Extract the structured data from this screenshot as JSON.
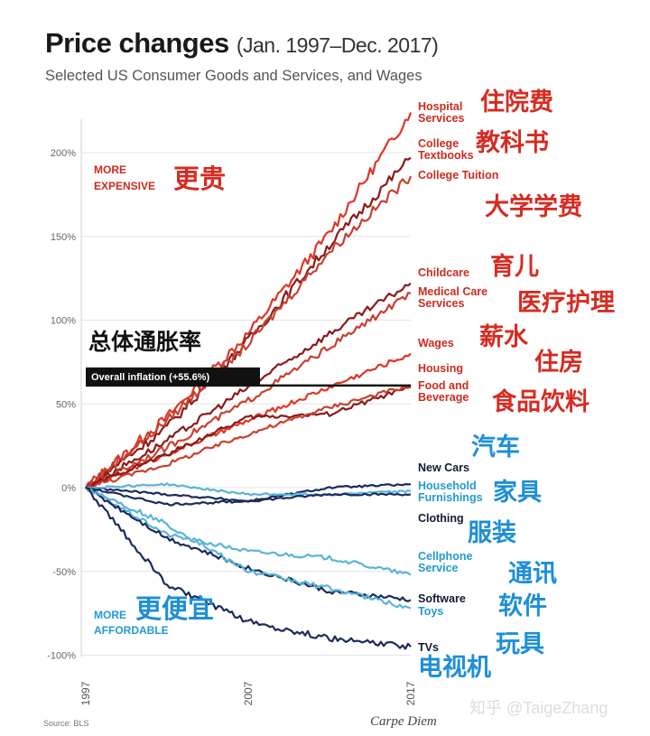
{
  "header": {
    "title": "Price changes",
    "title_range": "(Jan. 1997–Dec. 2017)",
    "subtitle": "Selected US Consumer Goods and Services, and Wages"
  },
  "footer": {
    "source": "Source: BLS",
    "credit": "Carpe Diem",
    "watermark": "知乎 @TaigeZhang"
  },
  "colors": {
    "expensive": "#cc2a1f",
    "affordable": "#1f9bd1",
    "dark_red": "#8b1a1a",
    "mid_red": "#c8402f",
    "bright_red": "#e03526",
    "navy": "#1a2b5e",
    "light_blue": "#5ab4d8",
    "cn_red": "#d62b22",
    "cn_blue": "#1e8fd6",
    "grid": "#e4e4e4"
  },
  "chart_data": {
    "type": "line",
    "title": "Price changes",
    "subtitle": "Selected US Consumer Goods and Services, and Wages",
    "xlim": [
      1997,
      2017
    ],
    "ylim": [
      -100,
      220
    ],
    "x_ticks": [
      "1997",
      "2007",
      "2017"
    ],
    "y_ticks": [
      "200%",
      "150%",
      "100%",
      "50%",
      "0%",
      "-50%",
      "-100%"
    ],
    "grid": true,
    "region_labels": {
      "expensive": "MORE EXPENSIVE",
      "affordable": "MORE AFFORDABLE",
      "expensive_cn": "更贵",
      "affordable_cn": "更便宜"
    },
    "inflation": {
      "label": "Overall inflation (+55.6%)",
      "label_cn": "总体通胀率",
      "value": 55.6
    },
    "x": [
      1997,
      2002,
      2007,
      2012,
      2017
    ],
    "series": [
      {
        "name": "Hospital Services",
        "name_cn": "住院费",
        "color": "#e03526",
        "values": [
          0,
          42,
          92,
          152,
          224
        ]
      },
      {
        "name": "College Textbooks",
        "name_cn": "教科书",
        "color": "#8b1a1a",
        "values": [
          0,
          36,
          88,
          145,
          197
        ]
      },
      {
        "name": "College Tuition",
        "name_cn": "大学学费",
        "color": "#c8402f",
        "values": [
          0,
          40,
          86,
          141,
          186
        ]
      },
      {
        "name": "Childcare",
        "name_cn": "育儿",
        "color": "#8b1a1a",
        "values": [
          0,
          28,
          60,
          92,
          122
        ]
      },
      {
        "name": "Medical Care Services",
        "name_cn": "医疗护理",
        "color": "#c8402f",
        "values": [
          0,
          24,
          52,
          84,
          116
        ]
      },
      {
        "name": "Wages",
        "name_cn": "薪水",
        "color": "#e03526",
        "values": [
          0,
          20,
          40,
          60,
          80
        ]
      },
      {
        "name": "Housing",
        "name_cn": "住房",
        "color": "#8b1a1a",
        "values": [
          0,
          20,
          42,
          44,
          60
        ]
      },
      {
        "name": "Food and Beverage",
        "name_cn": "食品饮料",
        "color": "#c8402f",
        "values": [
          0,
          14,
          32,
          48,
          61
        ]
      },
      {
        "name": "New Cars",
        "name_cn": "汽车",
        "color": "#1a2b5e",
        "values": [
          0,
          -4,
          -8,
          0,
          2
        ]
      },
      {
        "name": "Household Furnishings",
        "name_cn": "家具",
        "color": "#5ab4d8",
        "values": [
          0,
          2,
          -4,
          -4,
          -2
        ]
      },
      {
        "name": "Clothing",
        "name_cn": "服装",
        "color": "#1a2b5e",
        "values": [
          0,
          -10,
          -8,
          -4,
          -4
        ]
      },
      {
        "name": "Cellphone Service",
        "name_cn": "通讯",
        "color": "#5ab4d8",
        "values": [
          0,
          -28,
          -38,
          -42,
          -52
        ]
      },
      {
        "name": "Software",
        "name_cn": "软件",
        "color": "#1a2b5e",
        "values": [
          0,
          -30,
          -48,
          -62,
          -67
        ]
      },
      {
        "name": "Toys",
        "name_cn": "玩具",
        "color": "#5ab4d8",
        "values": [
          0,
          -22,
          -50,
          -60,
          -72
        ]
      },
      {
        "name": "TVs",
        "name_cn": "电视机",
        "color": "#1a2b5e",
        "values": [
          0,
          -58,
          -80,
          -90,
          -95
        ]
      }
    ]
  }
}
